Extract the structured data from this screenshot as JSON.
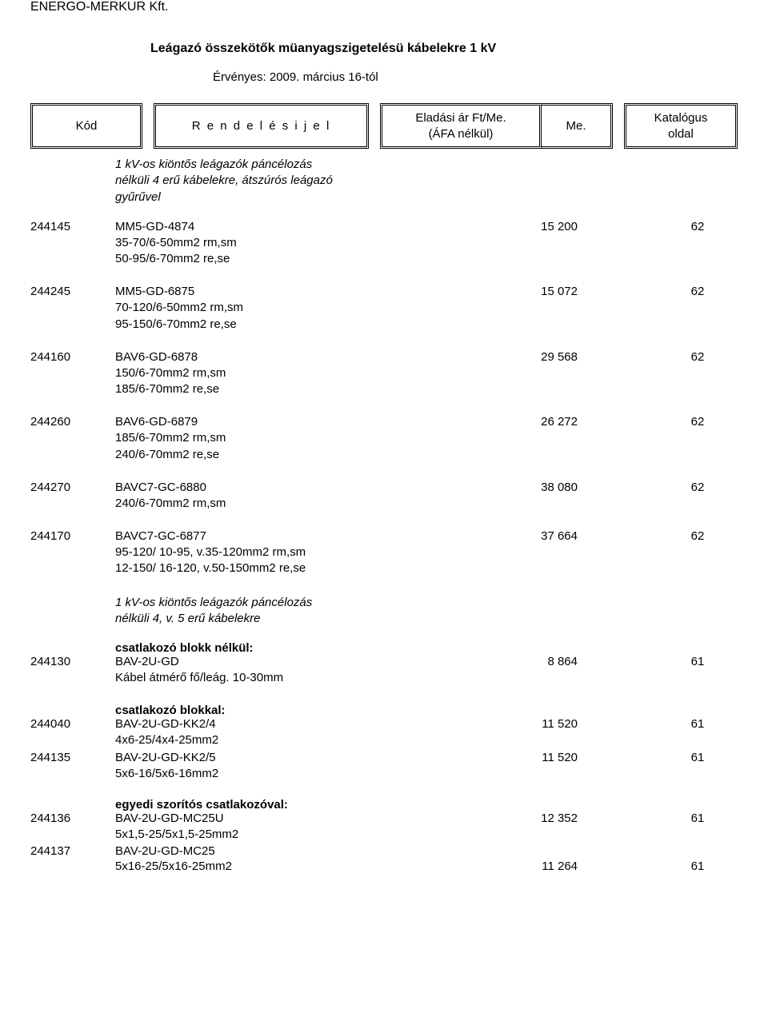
{
  "company": "ENERGO-MERKUR Kft.",
  "title": "Leágazó összekötők müanyagszigetelésü kábelekre  1 kV",
  "validity": "Érvényes: 2009. március 16-tól",
  "header": {
    "kod": "Kód",
    "rend": "R e n d e l é s i  j e l",
    "price_l1": "Eladási ár Ft/Me.",
    "price_l2": "(ÁFA nélkül)",
    "me": "Me.",
    "kat_l1": "Katalógus",
    "kat_l2": "oldal"
  },
  "section1": {
    "l1": "1 kV-os kiöntős leágazók páncélozás",
    "l2": "nélküli 4 erű kábelekre, átszúrós leágazó",
    "l3": "gyűrűvel"
  },
  "items1": [
    {
      "code": "244145",
      "name": "MM5-GD-4874",
      "subs": [
        "35-70/6-50mm2 rm,sm",
        "50-95/6-70mm2 re,se"
      ],
      "price": "15 200",
      "page": "62"
    },
    {
      "code": "244245",
      "name": "MM5-GD-6875",
      "subs": [
        "70-120/6-50mm2 rm,sm",
        "95-150/6-70mm2 re,se"
      ],
      "price": "15 072",
      "page": "62"
    },
    {
      "code": "244160",
      "name": "BAV6-GD-6878",
      "subs": [
        "150/6-70mm2 rm,sm",
        "185/6-70mm2 re,se"
      ],
      "price": "29 568",
      "page": "62"
    },
    {
      "code": "244260",
      "name": "BAV6-GD-6879",
      "subs": [
        "185/6-70mm2 rm,sm",
        "240/6-70mm2 re,se"
      ],
      "price": "26 272",
      "page": "62"
    },
    {
      "code": "244270",
      "name": "BAVC7-GC-6880",
      "subs": [
        "240/6-70mm2 rm,sm"
      ],
      "price": "38 080",
      "page": "62"
    },
    {
      "code": "244170",
      "name": "BAVC7-GC-6877",
      "subs": [
        "95-120/ 10-95, v.35-120mm2 rm,sm",
        "12-150/ 16-120, v.50-150mm2 re,se"
      ],
      "price": "37 664",
      "page": "62"
    }
  ],
  "section2": {
    "l1": "1 kV-os kiöntős leágazók páncélozás",
    "l2": "nélküli 4, v. 5 erű kábelekre"
  },
  "sub_a": "csatlakozó blokk nélkül:",
  "items2a": [
    {
      "code": "244130",
      "name": "BAV-2U-GD",
      "subs": [
        "Kábel átmérő fő/leág. 10-30mm"
      ],
      "price": "8 864",
      "page": "61"
    }
  ],
  "sub_b": "csatlakozó blokkal:",
  "items2b": [
    {
      "code": "244040",
      "name": "BAV-2U-GD-KK2/4",
      "subs": [
        "4x6-25/4x4-25mm2"
      ],
      "price": "11 520",
      "page": "61"
    },
    {
      "code": "244135",
      "name": "BAV-2U-GD-KK2/5",
      "subs": [
        "5x6-16/5x6-16mm2"
      ],
      "price": "11 520",
      "page": "61"
    }
  ],
  "sub_c": "egyedi szorítós csatlakozóval:",
  "items2c": [
    {
      "code": "244136",
      "name": "BAV-2U-GD-MC25U",
      "subs": [
        "5x1,5-25/5x1,5-25mm2"
      ],
      "price": "12 352",
      "page": "61"
    },
    {
      "code": "244137",
      "name": "BAV-2U-GD-MC25",
      "subs": [
        "5x16-25/5x16-25mm2"
      ],
      "price": "11 264",
      "page": "61",
      "price_on_sub": true
    }
  ]
}
